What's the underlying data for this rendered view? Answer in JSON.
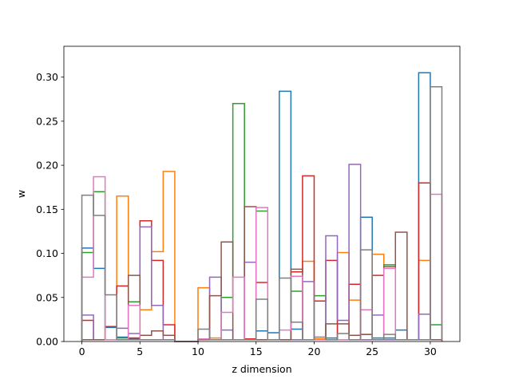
{
  "chart_data": {
    "type": "step",
    "xlabel": "z dimension",
    "ylabel": "w",
    "xlim": [
      -1.55,
      32.55
    ],
    "ylim": [
      0,
      0.335
    ],
    "xticks": [
      0,
      5,
      10,
      15,
      20,
      25,
      30
    ],
    "yticks": [
      0.0,
      0.05,
      0.1,
      0.15,
      0.2,
      0.25,
      0.3
    ],
    "bin_edges": [
      0,
      1,
      2,
      3,
      4,
      5,
      6,
      7,
      8,
      9,
      10,
      11,
      12,
      13,
      14,
      15,
      16,
      17,
      18,
      19,
      20,
      21,
      22,
      23,
      24,
      25,
      26,
      27,
      28,
      29,
      30,
      31
    ],
    "series": [
      {
        "color": "#1f77b4",
        "values": [
          0.106,
          0.083,
          0.016,
          0.005,
          0.003,
          0.002,
          0.002,
          0.002,
          0,
          0,
          0.002,
          0.002,
          0.002,
          0.002,
          0.002,
          0.012,
          0.01,
          0.284,
          0.014,
          0.002,
          0.002,
          0.004,
          0.002,
          0.002,
          0.141,
          0.004,
          0.004,
          0.013,
          0.002,
          0.305,
          0.002
        ]
      },
      {
        "color": "#ff7f0e",
        "values": [
          0.002,
          0.002,
          0.002,
          0.165,
          0.004,
          0.036,
          0.102,
          0.193,
          0,
          0,
          0.061,
          0.004,
          0.002,
          0.002,
          0.002,
          0.002,
          0.002,
          0.002,
          0.002,
          0.091,
          0.003,
          0.002,
          0.101,
          0.047,
          0.008,
          0.099,
          0.002,
          0.002,
          0.002,
          0.092,
          0.002
        ]
      },
      {
        "color": "#2ca02c",
        "values": [
          0.101,
          0.17,
          0.002,
          0.004,
          0.045,
          0.002,
          0.002,
          0.002,
          0,
          0,
          0.002,
          0.002,
          0.05,
          0.27,
          0.002,
          0.148,
          0.002,
          0.002,
          0.057,
          0.002,
          0.052,
          0.002,
          0.002,
          0.002,
          0.002,
          0.002,
          0.087,
          0.002,
          0.002,
          0.002,
          0.019
        ]
      },
      {
        "color": "#d62728",
        "values": [
          0.024,
          0.002,
          0.017,
          0.063,
          0.004,
          0.137,
          0.092,
          0.019,
          0,
          0,
          0.002,
          0.002,
          0.002,
          0.002,
          0.003,
          0.067,
          0.002,
          0.002,
          0.079,
          0.188,
          0.046,
          0.092,
          0.002,
          0.065,
          0.002,
          0.075,
          0.002,
          0.002,
          0.002,
          0.18,
          0.002
        ]
      },
      {
        "color": "#9467bd",
        "values": [
          0.03,
          0.002,
          0.002,
          0.015,
          0.009,
          0.13,
          0.041,
          0.002,
          0,
          0,
          0.002,
          0.073,
          0.013,
          0.002,
          0.09,
          0.002,
          0.002,
          0.002,
          0.002,
          0.068,
          0.002,
          0.12,
          0.024,
          0.201,
          0.002,
          0.03,
          0.002,
          0.002,
          0.002,
          0.031,
          0.002
        ]
      },
      {
        "color": "#8c564b",
        "values": [
          0.002,
          0.002,
          0.002,
          0.002,
          0.075,
          0.007,
          0.012,
          0.007,
          0,
          0,
          0.002,
          0.052,
          0.113,
          0.002,
          0.153,
          0.002,
          0.002,
          0.002,
          0.082,
          0.002,
          0.002,
          0.02,
          0.02,
          0.007,
          0.008,
          0.002,
          0.085,
          0.124,
          0.002,
          0.002,
          0.002
        ]
      },
      {
        "color": "#e377c2",
        "values": [
          0.073,
          0.187,
          0.002,
          0.002,
          0.041,
          0.002,
          0.002,
          0.002,
          0,
          0,
          0.003,
          0.002,
          0.033,
          0.073,
          0.002,
          0.152,
          0.002,
          0.013,
          0.074,
          0.002,
          0.002,
          0.002,
          0.002,
          0.002,
          0.036,
          0.002,
          0.083,
          0.002,
          0.002,
          0.002,
          0.167
        ]
      },
      {
        "color": "#7f7f7f",
        "values": [
          0.166,
          0.143,
          0.053,
          0.002,
          0.002,
          0.002,
          0.002,
          0.002,
          0,
          0,
          0.014,
          0.002,
          0.002,
          0.002,
          0.002,
          0.048,
          0.002,
          0.072,
          0.022,
          0.002,
          0.005,
          0.002,
          0.009,
          0.002,
          0.104,
          0.002,
          0.008,
          0.002,
          0.002,
          0.002,
          0.289
        ]
      }
    ]
  }
}
